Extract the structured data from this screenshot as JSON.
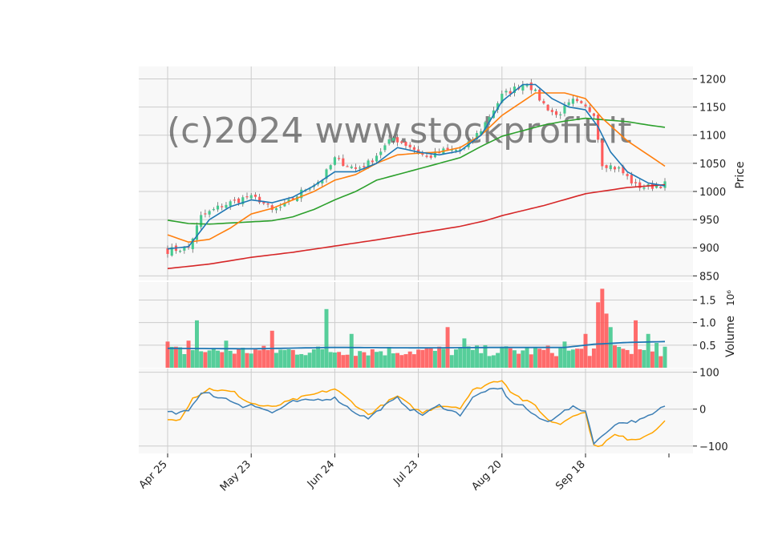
{
  "watermark": "(c)2024 www.stockprofit.it",
  "colors": {
    "panel_bg": "#f8f8f8",
    "grid": "#cccccc",
    "up": "#44c98f",
    "down": "#ff5b5b",
    "ma_short": "#1f77b4",
    "ma_mid": "#ff7f0e",
    "ma_long": "#2ca02c",
    "ma_200": "#d62728",
    "vol_ma": "#1f77b4",
    "osc_fast": "#3d7fb5",
    "osc_slow": "#ffa500"
  },
  "chart_data": [
    {
      "type": "candlestick",
      "panel": "price",
      "ylabel": "Price",
      "ylim": [
        842,
        1222
      ],
      "yticks": [
        850,
        900,
        950,
        1000,
        1050,
        1100,
        1150,
        1200
      ],
      "xlabels": [
        "Apr 25",
        "May 23",
        "Jun 24",
        "Jul 23",
        "Aug 20",
        "Sep 18"
      ],
      "xlabel_index": [
        0,
        20,
        40,
        60,
        80,
        100
      ],
      "grid": true,
      "n_bars": 120,
      "close_anchors": [
        [
          0,
          895
        ],
        [
          5,
          900
        ],
        [
          8,
          955
        ],
        [
          13,
          975
        ],
        [
          19,
          990
        ],
        [
          22,
          985
        ],
        [
          25,
          965
        ],
        [
          28,
          975
        ],
        [
          33,
          1005
        ],
        [
          37,
          1022
        ],
        [
          40,
          1058
        ],
        [
          45,
          1040
        ],
        [
          48,
          1050
        ],
        [
          54,
          1095
        ],
        [
          58,
          1080
        ],
        [
          62,
          1060
        ],
        [
          66,
          1072
        ],
        [
          71,
          1075
        ],
        [
          75,
          1110
        ],
        [
          80,
          1170
        ],
        [
          86,
          1195
        ],
        [
          90,
          1155
        ],
        [
          93,
          1135
        ],
        [
          97,
          1160
        ],
        [
          102,
          1140
        ],
        [
          104,
          1050
        ],
        [
          108,
          1040
        ],
        [
          112,
          1010
        ],
        [
          115,
          1008
        ],
        [
          119,
          1013
        ]
      ],
      "ma_short_anchors": [
        [
          0,
          898
        ],
        [
          5,
          902
        ],
        [
          10,
          950
        ],
        [
          15,
          973
        ],
        [
          20,
          985
        ],
        [
          25,
          980
        ],
        [
          30,
          990
        ],
        [
          35,
          1010
        ],
        [
          40,
          1035
        ],
        [
          45,
          1035
        ],
        [
          50,
          1050
        ],
        [
          55,
          1078
        ],
        [
          60,
          1070
        ],
        [
          65,
          1065
        ],
        [
          70,
          1072
        ],
        [
          75,
          1100
        ],
        [
          80,
          1160
        ],
        [
          85,
          1190
        ],
        [
          88,
          1190
        ],
        [
          92,
          1165
        ],
        [
          96,
          1150
        ],
        [
          100,
          1145
        ],
        [
          103,
          1115
        ],
        [
          106,
          1070
        ],
        [
          110,
          1035
        ],
        [
          115,
          1015
        ],
        [
          119,
          1010
        ]
      ],
      "ma_mid_anchors": [
        [
          0,
          923
        ],
        [
          5,
          910
        ],
        [
          10,
          915
        ],
        [
          15,
          935
        ],
        [
          20,
          960
        ],
        [
          25,
          970
        ],
        [
          30,
          985
        ],
        [
          35,
          1000
        ],
        [
          40,
          1020
        ],
        [
          45,
          1030
        ],
        [
          50,
          1050
        ],
        [
          55,
          1065
        ],
        [
          60,
          1068
        ],
        [
          65,
          1070
        ],
        [
          70,
          1078
        ],
        [
          75,
          1100
        ],
        [
          80,
          1135
        ],
        [
          85,
          1160
        ],
        [
          88,
          1175
        ],
        [
          95,
          1175
        ],
        [
          100,
          1165
        ],
        [
          104,
          1130
        ],
        [
          110,
          1090
        ],
        [
          115,
          1065
        ],
        [
          119,
          1045
        ]
      ],
      "ma_long_anchors": [
        [
          0,
          949
        ],
        [
          5,
          943
        ],
        [
          10,
          942
        ],
        [
          15,
          944
        ],
        [
          20,
          946
        ],
        [
          25,
          948
        ],
        [
          30,
          955
        ],
        [
          35,
          968
        ],
        [
          40,
          985
        ],
        [
          45,
          1000
        ],
        [
          50,
          1020
        ],
        [
          55,
          1030
        ],
        [
          60,
          1040
        ],
        [
          65,
          1050
        ],
        [
          70,
          1060
        ],
        [
          75,
          1080
        ],
        [
          80,
          1098
        ],
        [
          85,
          1108
        ],
        [
          90,
          1118
        ],
        [
          95,
          1125
        ],
        [
          100,
          1130
        ],
        [
          105,
          1127
        ],
        [
          110,
          1124
        ],
        [
          115,
          1118
        ],
        [
          119,
          1114
        ]
      ],
      "ma_200_anchors": [
        [
          0,
          863
        ],
        [
          10,
          871
        ],
        [
          20,
          883
        ],
        [
          30,
          892
        ],
        [
          40,
          903
        ],
        [
          50,
          914
        ],
        [
          60,
          926
        ],
        [
          70,
          938
        ],
        [
          76,
          948
        ],
        [
          80,
          957
        ],
        [
          90,
          975
        ],
        [
          100,
          996
        ],
        [
          110,
          1007
        ],
        [
          119,
          1012
        ]
      ]
    },
    {
      "type": "bar",
      "panel": "volume",
      "ylabel": "Volume",
      "scale_label": "10⁶",
      "ylim": [
        0,
        1.9
      ],
      "yticks": [
        0.5,
        1.0,
        1.5
      ],
      "spikes": [
        [
          0,
          0.58
        ],
        [
          5,
          0.6
        ],
        [
          7,
          1.05
        ],
        [
          14,
          0.6
        ],
        [
          25,
          0.82
        ],
        [
          38,
          1.3
        ],
        [
          44,
          0.75
        ],
        [
          67,
          0.9
        ],
        [
          71,
          0.65
        ],
        [
          95,
          0.58
        ],
        [
          100,
          0.75
        ],
        [
          103,
          1.45
        ],
        [
          104,
          1.75
        ],
        [
          105,
          1.2
        ],
        [
          106,
          0.9
        ],
        [
          112,
          1.05
        ],
        [
          115,
          0.75
        ],
        [
          117,
          0.55
        ]
      ],
      "ma_anchors": [
        [
          0,
          0.43
        ],
        [
          20,
          0.42
        ],
        [
          40,
          0.45
        ],
        [
          60,
          0.44
        ],
        [
          80,
          0.45
        ],
        [
          95,
          0.45
        ],
        [
          102,
          0.52
        ],
        [
          110,
          0.56
        ],
        [
          119,
          0.58
        ]
      ]
    },
    {
      "type": "line",
      "panel": "oscillator",
      "ylim": [
        -120,
        110
      ],
      "yticks": [
        -100,
        0,
        100
      ],
      "fast_anchors": [
        [
          0,
          -8
        ],
        [
          2,
          -12
        ],
        [
          5,
          -5
        ],
        [
          8,
          45
        ],
        [
          10,
          45
        ],
        [
          12,
          30
        ],
        [
          15,
          25
        ],
        [
          18,
          5
        ],
        [
          20,
          15
        ],
        [
          25,
          -10
        ],
        [
          30,
          20
        ],
        [
          35,
          25
        ],
        [
          40,
          30
        ],
        [
          45,
          -10
        ],
        [
          48,
          -25
        ],
        [
          52,
          10
        ],
        [
          55,
          30
        ],
        [
          58,
          0
        ],
        [
          61,
          -15
        ],
        [
          65,
          10
        ],
        [
          70,
          -15
        ],
        [
          73,
          30
        ],
        [
          76,
          50
        ],
        [
          80,
          55
        ],
        [
          82,
          20
        ],
        [
          85,
          10
        ],
        [
          88,
          -20
        ],
        [
          91,
          -35
        ],
        [
          94,
          -10
        ],
        [
          97,
          5
        ],
        [
          100,
          -5
        ],
        [
          102,
          -90
        ],
        [
          104,
          -75
        ],
        [
          107,
          -40
        ],
        [
          110,
          -35
        ],
        [
          113,
          -30
        ],
        [
          116,
          -15
        ],
        [
          119,
          10
        ]
      ],
      "slow_anchors": [
        [
          0,
          -30
        ],
        [
          3,
          -25
        ],
        [
          6,
          30
        ],
        [
          10,
          55
        ],
        [
          13,
          50
        ],
        [
          16,
          45
        ],
        [
          19,
          20
        ],
        [
          22,
          10
        ],
        [
          25,
          5
        ],
        [
          30,
          25
        ],
        [
          35,
          40
        ],
        [
          40,
          55
        ],
        [
          44,
          20
        ],
        [
          48,
          -15
        ],
        [
          52,
          15
        ],
        [
          55,
          35
        ],
        [
          58,
          10
        ],
        [
          61,
          -10
        ],
        [
          65,
          10
        ],
        [
          70,
          5
        ],
        [
          73,
          50
        ],
        [
          77,
          70
        ],
        [
          80,
          80
        ],
        [
          82,
          50
        ],
        [
          85,
          25
        ],
        [
          88,
          10
        ],
        [
          91,
          -30
        ],
        [
          94,
          -40
        ],
        [
          97,
          -15
        ],
        [
          100,
          -10
        ],
        [
          102,
          -100
        ],
        [
          104,
          -95
        ],
        [
          107,
          -70
        ],
        [
          110,
          -80
        ],
        [
          113,
          -80
        ],
        [
          116,
          -60
        ],
        [
          119,
          -35
        ]
      ]
    }
  ]
}
